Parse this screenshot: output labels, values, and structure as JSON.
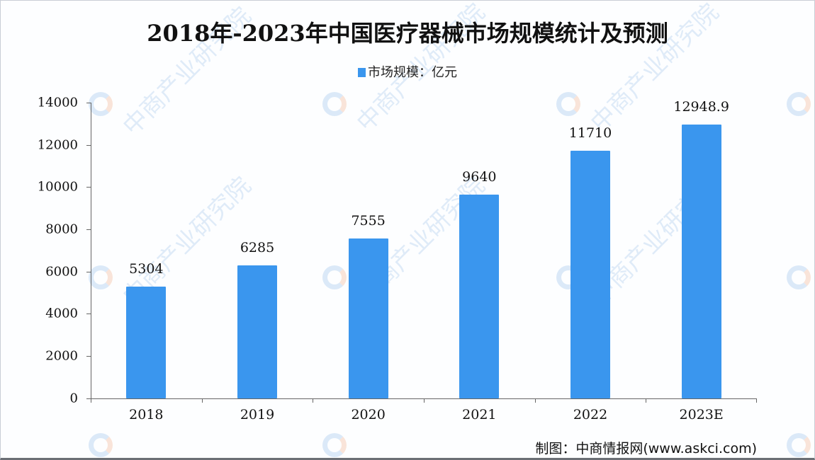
{
  "chart_data": {
    "type": "bar",
    "title": "2018年-2023年中国医疗器械市场规模统计及预测",
    "categories": [
      "2018",
      "2019",
      "2020",
      "2021",
      "2022",
      "2023E"
    ],
    "series": [
      {
        "name": "市场规模：亿元",
        "values": [
          5304,
          6285,
          7555,
          9640,
          11710,
          12948.9
        ],
        "color": "#3a96ee"
      }
    ],
    "data_labels": [
      "5304",
      "6285",
      "7555",
      "9640",
      "11710",
      "12948.9"
    ],
    "xlabel": "",
    "ylabel": "",
    "ylim": [
      0,
      14000
    ],
    "yticks": [
      "0",
      "2000",
      "4000",
      "6000",
      "8000",
      "10000",
      "12000",
      "14000"
    ],
    "grid": false,
    "legend_position": "top"
  },
  "legend": {
    "label": "市场规模：亿元"
  },
  "source": "制图：中商情报网(www.askci.com)",
  "watermark": "中商产业研究院"
}
